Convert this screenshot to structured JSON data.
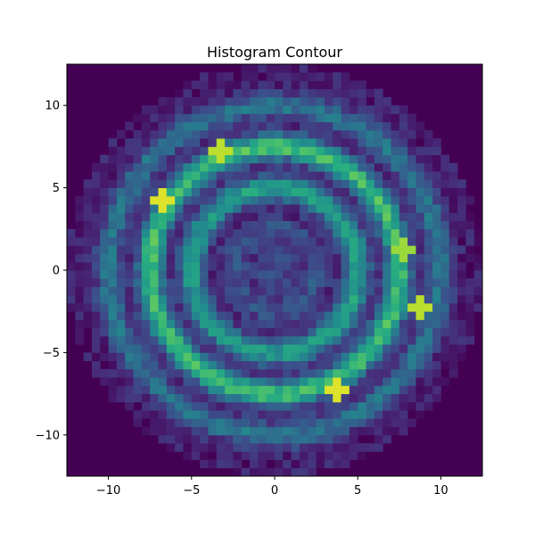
{
  "chart_data": {
    "type": "heatmap",
    "title": "Histogram Contour",
    "xlabel": "",
    "ylabel": "",
    "xlim": [
      -12.5,
      12.5
    ],
    "ylim": [
      -12.5,
      12.5
    ],
    "bins": [
      50,
      50
    ],
    "x_ticks": [
      -10,
      -5,
      0,
      5,
      10
    ],
    "y_ticks": [
      -10,
      -5,
      0,
      5,
      10
    ],
    "x_tick_labels": [
      "−10",
      "−5",
      "0",
      "5",
      "10"
    ],
    "y_tick_labels": [
      "−10",
      "−5",
      "0",
      "5",
      "10"
    ],
    "colormap": "viridis",
    "background_color": "#440154",
    "rings": [
      {
        "radius": 7.5,
        "intensity": 0.62
      },
      {
        "radius": 5.0,
        "intensity": 0.48
      },
      {
        "radius": 2.5,
        "intensity": 0.18
      },
      {
        "radius": 10.0,
        "intensity": 0.3
      },
      {
        "radius": 0.5,
        "intensity": 0.16
      }
    ],
    "hotspots": [
      {
        "x": -6.75,
        "y": 4.25,
        "value": 0.95
      },
      {
        "x": -3.25,
        "y": 7.25,
        "value": 0.9
      },
      {
        "x": 3.75,
        "y": -7.25,
        "value": 0.95
      },
      {
        "x": 8.75,
        "y": -2.25,
        "value": 0.9
      },
      {
        "x": 7.75,
        "y": 1.25,
        "value": 0.85
      }
    ],
    "support_radius": 12.5,
    "grid": false
  }
}
